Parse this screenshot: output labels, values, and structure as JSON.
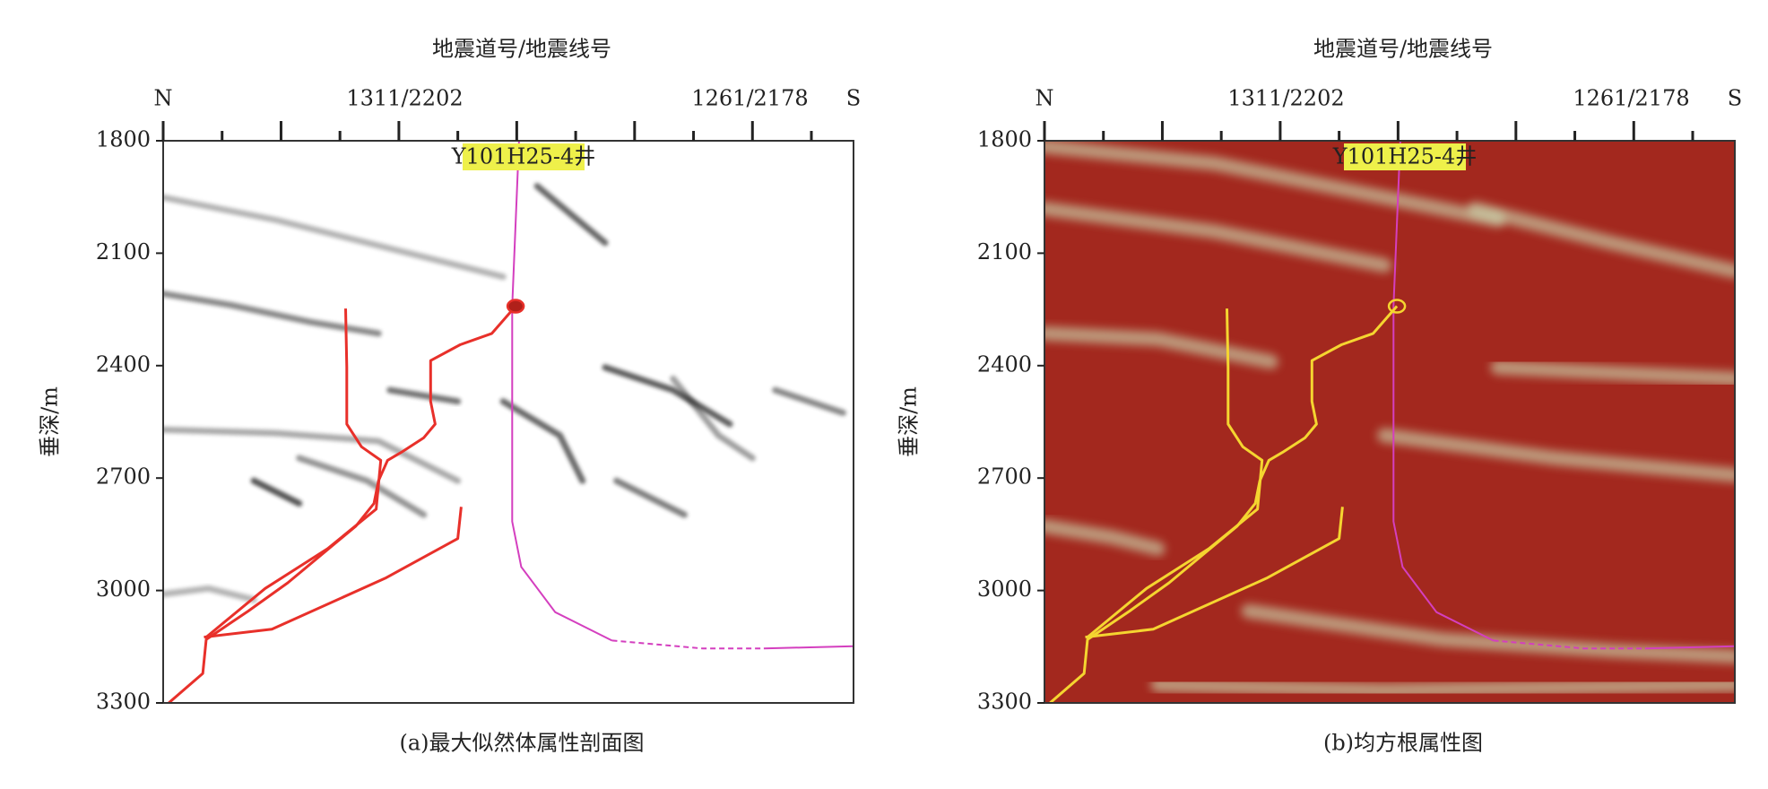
{
  "chart_data": [
    {
      "type": "section",
      "title": "地震道号/地震线号",
      "top_labels": [
        "N",
        "1311/2202",
        "1261/2178",
        "S"
      ],
      "ylabel": "垂深/m",
      "ylim": [
        1800,
        3300
      ],
      "yticks": [
        1800,
        2100,
        2400,
        2700,
        3000,
        3300
      ],
      "well_label": "Y101H25-4井",
      "caption": "(a)最大似然体属性剖面图",
      "background": "#ffffff",
      "streak_color": "#2a2a2a",
      "interpretation_color": "#e8302a",
      "well_color": "#d43fbf"
    },
    {
      "type": "section",
      "title": "地震道号/地震线号",
      "top_labels": [
        "N",
        "1311/2202",
        "1261/2178",
        "S"
      ],
      "ylabel": "垂深/m",
      "ylim": [
        1800,
        3300
      ],
      "yticks": [
        1800,
        2100,
        2400,
        2700,
        3000,
        3300
      ],
      "well_label": "Y101H25-4井",
      "caption": "(b)均方根属性图",
      "background": "#a3281e",
      "streak_color": "#d2f5c8",
      "interpretation_color": "#f5d530",
      "well_color": "#d43fbf"
    }
  ]
}
